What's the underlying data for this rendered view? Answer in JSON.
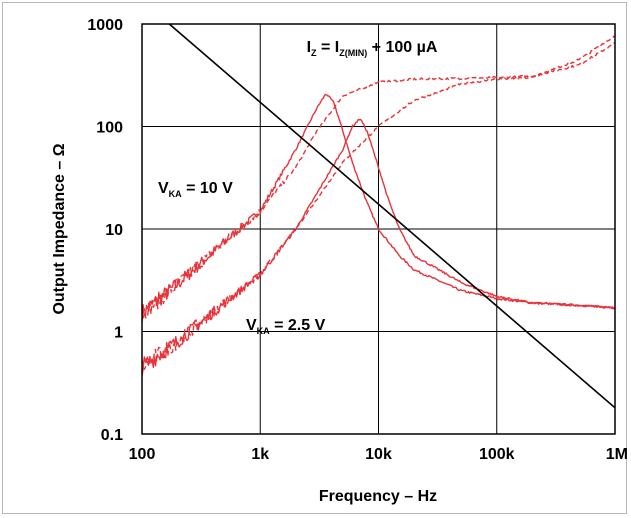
{
  "chart_data": {
    "type": "line",
    "title": "",
    "xlabel": "Frequency – Hz",
    "ylabel": "Output Impedance – Ω",
    "xscale": "log",
    "yscale": "log",
    "xlim": [
      100,
      1000000
    ],
    "ylim": [
      0.1,
      1000
    ],
    "grid": true,
    "x_ticks": [
      {
        "value": 100,
        "label": "100"
      },
      {
        "value": 1000,
        "label": "1k"
      },
      {
        "value": 10000,
        "label": "10k"
      },
      {
        "value": 100000,
        "label": "100k"
      },
      {
        "value": 1000000,
        "label": "1M"
      }
    ],
    "y_ticks": [
      {
        "value": 0.1,
        "label": "0.1"
      },
      {
        "value": 1,
        "label": "1"
      },
      {
        "value": 10,
        "label": "10"
      },
      {
        "value": 100,
        "label": "100"
      },
      {
        "value": 1000,
        "label": "1000"
      }
    ],
    "annotations": [
      {
        "id": "iz",
        "parts": [
          [
            "I",
            ""
          ],
          [
            "Z",
            "sub"
          ],
          [
            " = I",
            ""
          ],
          [
            "Z(MIN)",
            "sub"
          ],
          [
            " + 100 µA",
            ""
          ]
        ]
      },
      {
        "id": "vka10",
        "parts": [
          [
            "V",
            ""
          ],
          [
            "KA",
            "sub"
          ],
          [
            " = 10 V",
            ""
          ]
        ]
      },
      {
        "id": "vka25",
        "parts": [
          [
            "V",
            ""
          ],
          [
            "KA",
            "sub"
          ],
          [
            " = 2.5 V",
            ""
          ]
        ]
      }
    ],
    "series": [
      {
        "name": "",
        "color": "#e8333a",
        "style": "solid",
        "x": [
          100,
          200,
          500,
          1000,
          2000,
          3000,
          3600,
          4200,
          5000,
          6000,
          8000,
          10000,
          15000,
          20000,
          50000,
          100000,
          200000,
          500000,
          1000000
        ],
        "y": [
          1.5,
          2.9,
          7.5,
          15,
          60,
          150,
          210,
          170,
          90,
          45,
          18,
          10,
          5.5,
          4,
          2.5,
          2.1,
          1.9,
          1.8,
          1.7
        ]
      },
      {
        "name": "",
        "color": "#e8333a",
        "style": "dashed",
        "x": [
          100,
          200,
          500,
          1000,
          2000,
          3000,
          5000,
          10000,
          20000,
          50000,
          100000,
          200000,
          500000,
          1000000
        ],
        "y": [
          1.5,
          2.9,
          7.5,
          15,
          40,
          90,
          200,
          270,
          290,
          295,
          300,
          310,
          400,
          650
        ]
      },
      {
        "name": "",
        "color": "#e8333a",
        "style": "solid",
        "x": [
          100,
          200,
          500,
          1000,
          2000,
          3000,
          5000,
          6000,
          7000,
          8000,
          10000,
          12000,
          15000,
          20000,
          50000,
          100000,
          200000,
          500000,
          1000000
        ],
        "y": [
          0.45,
          0.8,
          1.9,
          3.6,
          10,
          22,
          60,
          100,
          120,
          90,
          40,
          20,
          10,
          5.5,
          3,
          2.2,
          1.9,
          1.8,
          1.7
        ]
      },
      {
        "name": "",
        "color": "#e8333a",
        "style": "dashed",
        "x": [
          100,
          200,
          500,
          1000,
          2000,
          5000,
          10000,
          20000,
          50000,
          100000,
          200000,
          500000,
          1000000
        ],
        "y": [
          0.45,
          0.8,
          1.9,
          3.6,
          10,
          45,
          100,
          180,
          260,
          290,
          300,
          450,
          760
        ]
      },
      {
        "name": "",
        "color": "#000000",
        "style": "solid",
        "x": [
          170,
          1000000
        ],
        "y": [
          1000,
          0.18
        ]
      }
    ]
  }
}
